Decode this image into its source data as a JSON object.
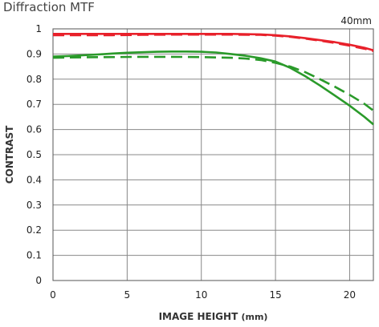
{
  "page": {
    "title": "Diffraction MTF"
  },
  "chart_data": {
    "type": "line",
    "title": "Diffraction MTF",
    "annotation": "40mm",
    "xlabel": "IMAGE HEIGHT",
    "xlabel_unit": "(mm)",
    "ylabel": "CONTRAST",
    "xlim": [
      0,
      21.6
    ],
    "ylim": [
      0,
      1
    ],
    "xticks": [
      0,
      5,
      10,
      15,
      20
    ],
    "yticks": [
      0,
      0.1,
      0.2,
      0.3,
      0.4,
      0.5,
      0.6,
      0.7,
      0.8,
      0.9,
      1
    ],
    "grid": true,
    "series": [
      {
        "color": "#e8202a",
        "style": "solid",
        "x": [
          0,
          2,
          4,
          6,
          8,
          10,
          12,
          14,
          15,
          16,
          17,
          18,
          19,
          20,
          21,
          21.6
        ],
        "y": [
          0.98,
          0.98,
          0.98,
          0.98,
          0.98,
          0.98,
          0.98,
          0.978,
          0.975,
          0.97,
          0.963,
          0.955,
          0.947,
          0.937,
          0.925,
          0.915
        ]
      },
      {
        "color": "#e8202a",
        "style": "dashed",
        "x": [
          0,
          2,
          4,
          6,
          8,
          10,
          12,
          14,
          15,
          16,
          17,
          18,
          19,
          20,
          21,
          21.6
        ],
        "y": [
          0.975,
          0.975,
          0.975,
          0.976,
          0.977,
          0.977,
          0.977,
          0.976,
          0.973,
          0.968,
          0.961,
          0.953,
          0.944,
          0.933,
          0.921,
          0.912
        ]
      },
      {
        "color": "#2a9a2a",
        "style": "solid",
        "x": [
          0,
          1,
          2,
          3,
          4,
          5,
          6,
          7,
          8,
          9,
          10,
          11,
          12,
          13,
          14,
          15,
          16,
          17,
          18,
          19,
          20,
          21,
          21.6
        ],
        "y": [
          0.89,
          0.892,
          0.895,
          0.898,
          0.902,
          0.905,
          0.907,
          0.909,
          0.91,
          0.91,
          0.909,
          0.906,
          0.9,
          0.893,
          0.883,
          0.87,
          0.845,
          0.812,
          0.775,
          0.735,
          0.695,
          0.65,
          0.62
        ]
      },
      {
        "color": "#2a9a2a",
        "style": "dashed",
        "x": [
          0,
          2,
          4,
          6,
          8,
          10,
          12,
          13,
          14,
          15,
          16,
          17,
          18,
          19,
          20,
          21,
          21.6
        ],
        "y": [
          0.885,
          0.887,
          0.888,
          0.889,
          0.889,
          0.888,
          0.885,
          0.882,
          0.876,
          0.865,
          0.85,
          0.828,
          0.8,
          0.77,
          0.738,
          0.702,
          0.675
        ]
      }
    ]
  }
}
